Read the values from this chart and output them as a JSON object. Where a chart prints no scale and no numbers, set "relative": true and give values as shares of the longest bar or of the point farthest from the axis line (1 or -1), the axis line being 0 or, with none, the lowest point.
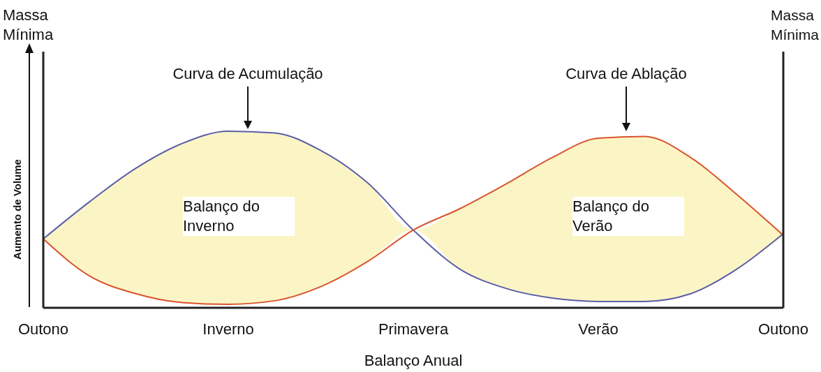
{
  "chart_data": {
    "type": "line",
    "relative": true,
    "xlabel": "Balanço Anual",
    "ylabel": "Aumento de Volume",
    "categories": [
      "Outono",
      null,
      null,
      null,
      "Inverno",
      null,
      null,
      null,
      "Primavera",
      null,
      null,
      null,
      "Verão",
      null,
      null,
      null,
      "Outono"
    ],
    "series": [
      {
        "color": "#5b5ea6",
        "values": [
          0.39,
          0.6,
          0.79,
          0.93,
          1.0,
          0.99,
          0.89,
          0.71,
          0.44,
          0.22,
          0.11,
          0.055,
          0.036,
          0.036,
          0.08,
          0.22,
          0.42
        ],
        "upper": [
          0.39,
          0.6,
          0.79,
          0.93,
          1.0,
          0.99,
          0.89,
          0.71,
          0.44,
          0.56,
          0.7,
          0.85,
          0.96,
          0.97,
          0.85,
          0.64,
          0.42
        ],
        "lower": [
          0.39,
          0.18,
          0.08,
          0.03,
          0.02,
          0.04,
          0.12,
          0.26,
          0.44,
          0.22,
          0.11,
          0.055,
          0.036,
          0.036,
          0.08,
          0.22,
          0.41
        ]
      },
      {
        "color": "#d9542c",
        "values": [
          0.39,
          0.18,
          0.08,
          0.03,
          0.02,
          0.04,
          0.12,
          0.26,
          0.44,
          0.56,
          0.7,
          0.85,
          0.96,
          0.97,
          0.85,
          0.64,
          0.41
        ]
      }
    ],
    "annotations": [
      "Massa Mínima",
      "Curva de Acumulação",
      "Curva de Ablação",
      "Balanço do Inverno",
      "Balanço do Verão",
      "Massa Mínima"
    ],
    "marker": "none",
    "line_style": "solid",
    "grid": false
  }
}
